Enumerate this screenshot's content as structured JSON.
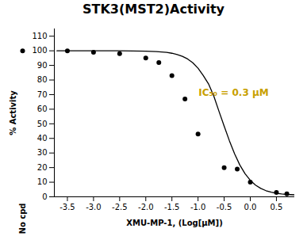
{
  "chart_data": {
    "type": "scatter",
    "title": "STK3(MST2)Activity",
    "xlabel": "XMU-MP-1, (Log[μM])",
    "ylabel": "% Activity",
    "x": [
      -3.5,
      -3.0,
      -2.5,
      -2.0,
      -1.75,
      -1.5,
      -1.25,
      -1.0,
      -0.5,
      -0.25,
      0.0,
      0.5,
      0.7
    ],
    "values": [
      100,
      99,
      98,
      95,
      92,
      83,
      67,
      43,
      20,
      19,
      10,
      3,
      2
    ],
    "color": "#000000",
    "curve": {
      "x": [
        -3.7,
        -3.5,
        -3.0,
        -2.5,
        -2.0,
        -1.8,
        -1.6,
        -1.5,
        -1.4,
        -1.3,
        -1.2,
        -1.1,
        -1.0,
        -0.9,
        -0.8,
        -0.7,
        -0.6,
        -0.5,
        -0.4,
        -0.3,
        -0.2,
        -0.1,
        0.0,
        0.1,
        0.2,
        0.3,
        0.4,
        0.5,
        0.6,
        0.7,
        0.85
      ],
      "values": [
        99.9998,
        99.9996,
        99.9966,
        99.973,
        99.786,
        99.511,
        98.886,
        98.324,
        97.485,
        96.243,
        94.422,
        91.795,
        88.089,
        83.021,
        77.381,
        69.153,
        58.632,
        48.45,
        38.438,
        29.376,
        21.768,
        15.773,
        11.281,
        8.04,
        5.767,
        4.202,
        3.139,
        2.423,
        1.945,
        1.626,
        1.337
      ],
      "color": "#000000"
    },
    "no_cpd": {
      "label": "No cpd",
      "value": 100
    },
    "annotations": [
      {
        "text": "IC₅₀ = 0.3 μM",
        "color": "#C8A000"
      }
    ],
    "xlim": [
      -3.75,
      0.85
    ],
    "ylim": [
      0,
      115
    ],
    "xticks": [
      -3.5,
      {
        "value": -3,
        "label": "-3.0"
      },
      -2.5,
      {
        "value": -2,
        "label": "-2.0"
      },
      -1.5,
      {
        "value": -1,
        "label": "-1.0"
      },
      -0.5,
      {
        "value": 0,
        "label": "0.0"
      },
      0.5
    ],
    "yticks": [
      0,
      10,
      20,
      30,
      40,
      50,
      60,
      70,
      80,
      90,
      100,
      110
    ],
    "grid": false
  }
}
